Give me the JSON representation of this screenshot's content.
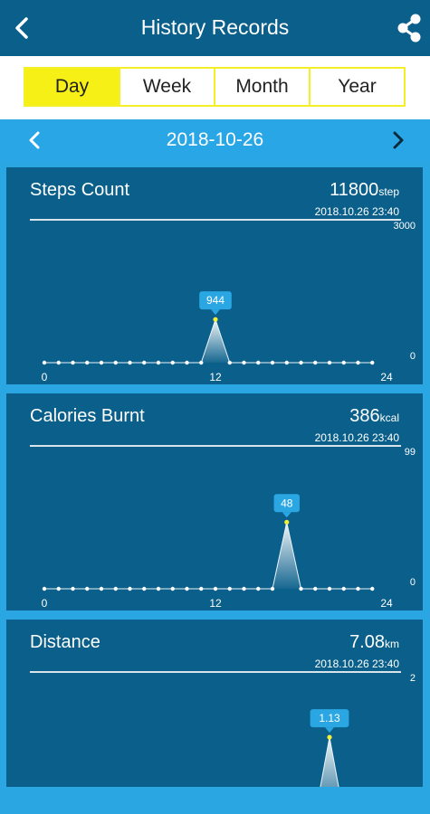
{
  "header": {
    "title": "History Records"
  },
  "tabs": [
    {
      "label": "Day",
      "active": true
    },
    {
      "label": "Week",
      "active": false
    },
    {
      "label": "Month",
      "active": false
    },
    {
      "label": "Year",
      "active": false
    }
  ],
  "date_nav": {
    "date": "2018-10-26"
  },
  "colors": {
    "header": "#0a5f8b",
    "accent_yellow": "#f7f016",
    "datebar": "#29a6e6",
    "callout": "#2aa6e3"
  },
  "cards": [
    {
      "title": "Steps Count",
      "value": "11800",
      "unit": "step",
      "timestamp": "2018.10.26 23:40",
      "y_max_label": "3000",
      "y_min_label": "0",
      "x_labels": [
        "0",
        "12",
        "24"
      ],
      "callout": {
        "index": 12,
        "value": "944"
      },
      "chart_data": {
        "type": "area",
        "x_range": [
          0,
          24
        ],
        "y_range": [
          0,
          3000
        ],
        "x": [
          0,
          1,
          2,
          3,
          4,
          5,
          6,
          7,
          8,
          9,
          10,
          11,
          12,
          13,
          14,
          15,
          16,
          17,
          18,
          19,
          20,
          21,
          22,
          23
        ],
        "values": [
          0,
          0,
          0,
          0,
          0,
          0,
          0,
          0,
          0,
          0,
          0,
          0,
          944,
          0,
          0,
          0,
          0,
          0,
          0,
          0,
          0,
          0,
          0,
          0
        ]
      }
    },
    {
      "title": "Calories Burnt",
      "value": "386",
      "unit": "kcal",
      "timestamp": "2018.10.26 23:40",
      "y_max_label": "99",
      "y_min_label": "0",
      "x_labels": [
        "0",
        "12",
        "24"
      ],
      "callout": {
        "index": 17,
        "value": "48"
      },
      "chart_data": {
        "type": "area",
        "x_range": [
          0,
          24
        ],
        "y_range": [
          0,
          99
        ],
        "x": [
          0,
          1,
          2,
          3,
          4,
          5,
          6,
          7,
          8,
          9,
          10,
          11,
          12,
          13,
          14,
          15,
          16,
          17,
          18,
          19,
          20,
          21,
          22,
          23
        ],
        "values": [
          0,
          0,
          0,
          0,
          0,
          0,
          0,
          0,
          0,
          0,
          0,
          0,
          0,
          0,
          0,
          0,
          0,
          48,
          0,
          0,
          0,
          0,
          0,
          0
        ]
      }
    },
    {
      "title": "Distance",
      "value": "7.08",
      "unit": "km",
      "timestamp": "2018.10.26 23:40",
      "y_max_label": "2",
      "y_min_label": "",
      "x_labels": [],
      "callout": {
        "index": 20,
        "value": "1.13"
      },
      "chart_data": {
        "type": "area",
        "x_range": [
          0,
          24
        ],
        "y_range": [
          0,
          2
        ],
        "x": [
          0,
          1,
          2,
          3,
          4,
          5,
          6,
          7,
          8,
          9,
          10,
          11,
          12,
          13,
          14,
          15,
          16,
          17,
          18,
          19,
          20,
          21,
          22,
          23
        ],
        "values": [
          0,
          0,
          0,
          0,
          0,
          0,
          0,
          0,
          0,
          0,
          0,
          0,
          0,
          0,
          0,
          0,
          0,
          0,
          0,
          0,
          1.13,
          0,
          0,
          0
        ]
      }
    }
  ]
}
